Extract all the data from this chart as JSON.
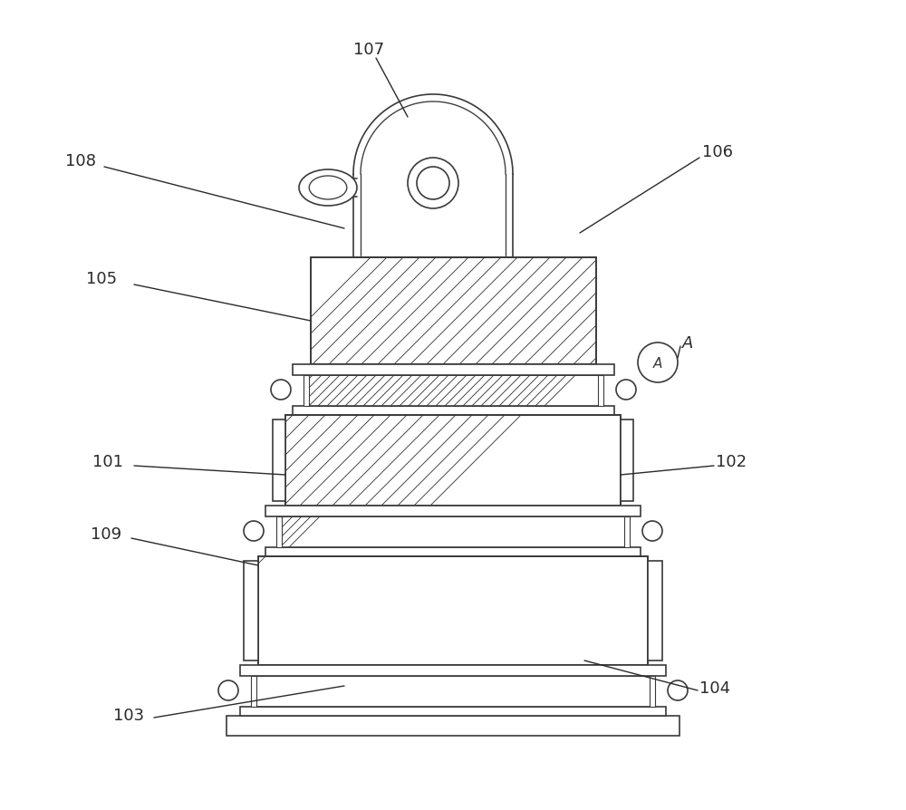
{
  "bg_color": "#ffffff",
  "line_color": "#3a3a3a",
  "lw": 1.2,
  "label_fs": 13,
  "label_color": "#2a2a2a"
}
